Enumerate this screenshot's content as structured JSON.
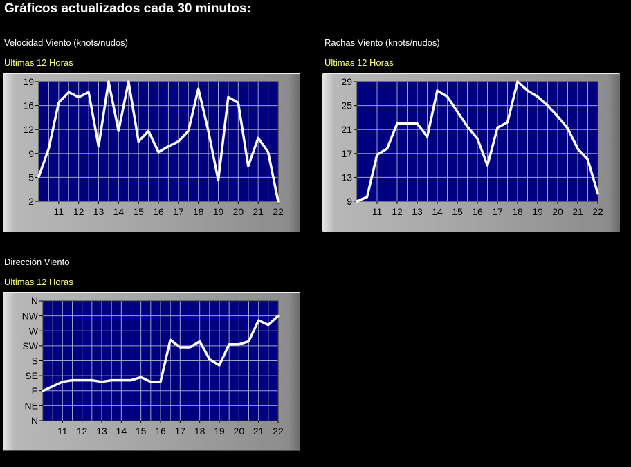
{
  "page": {
    "title": "Gráficos actualizados cada 30 minutos:"
  },
  "chart_data": [
    {
      "type": "line",
      "title": "Velocidad Viento (knots/nudos)",
      "subtitle": "Ultimas 12 Horas",
      "x_ticks": [
        "11",
        "12",
        "13",
        "14",
        "15",
        "16",
        "17",
        "18",
        "19",
        "20",
        "21",
        "22"
      ],
      "y_ticks": [
        "19",
        "16",
        "12",
        "9",
        "5",
        "2"
      ],
      "xlim": [
        10,
        22
      ],
      "ylim": [
        2,
        19
      ],
      "grid": true,
      "colors": {
        "plot_bg": "#000080",
        "line": "#ffffff",
        "grid": "#a0a0c8",
        "frame": "#a4a4a4"
      },
      "series": [
        {
          "x": [
            10,
            10.5,
            11,
            11.5,
            12,
            12.5,
            13,
            13.5,
            14,
            14.5,
            15,
            15.5,
            16,
            16.5,
            17,
            17.5,
            18,
            18.5,
            19,
            19.5,
            20,
            20.5,
            21,
            21.5,
            22
          ],
          "y": [
            5.5,
            9.5,
            16,
            17.5,
            16.8,
            17.5,
            9.8,
            19,
            12,
            19,
            10.5,
            12,
            9,
            9.8,
            10.5,
            12,
            18,
            12,
            5,
            16.8,
            16,
            7,
            11,
            9,
            2
          ]
        }
      ]
    },
    {
      "type": "line",
      "title": "Rachas Viento (knots/nudos)",
      "subtitle": "Ultimas 12 Horas",
      "x_ticks": [
        "11",
        "12",
        "13",
        "14",
        "15",
        "16",
        "17",
        "18",
        "19",
        "20",
        "21",
        "22"
      ],
      "y_ticks": [
        "29",
        "25",
        "21",
        "17",
        "13",
        "9"
      ],
      "xlim": [
        10,
        22
      ],
      "ylim": [
        9,
        29
      ],
      "grid": true,
      "colors": {
        "plot_bg": "#000080",
        "line": "#ffffff",
        "grid": "#a0a0c8",
        "frame": "#a4a4a4"
      },
      "series": [
        {
          "x": [
            10,
            10.5,
            11,
            11.5,
            12,
            12.5,
            13,
            13.5,
            14,
            14.5,
            15,
            15.5,
            16,
            16.5,
            17,
            17.5,
            18,
            18.5,
            19,
            19.5,
            20,
            20.5,
            21,
            21.5,
            22
          ],
          "y": [
            9,
            9.7,
            16.8,
            17.8,
            22,
            22,
            22,
            19.8,
            27.5,
            26.5,
            24,
            21.5,
            19.5,
            15,
            21.3,
            22.2,
            29,
            27.5,
            26.5,
            25,
            23.2,
            21.2,
            17.8,
            16,
            10.3
          ]
        }
      ]
    },
    {
      "type": "line",
      "title": "Dirección Viento",
      "subtitle": "Ultimas 12 Horas",
      "x_ticks": [
        "11",
        "12",
        "13",
        "14",
        "15",
        "16",
        "17",
        "18",
        "19",
        "20",
        "21",
        "22"
      ],
      "y_ticks": [
        "N",
        "NW",
        "W",
        "SW",
        "S",
        "SE",
        "E",
        "NE",
        "N"
      ],
      "xlim": [
        10,
        22
      ],
      "ylim": [
        0,
        8
      ],
      "grid": true,
      "colors": {
        "plot_bg": "#000080",
        "line": "#ffffff",
        "grid": "#a0a0c8",
        "frame": "#a4a4a4"
      },
      "series": [
        {
          "x": [
            10,
            10.5,
            11,
            11.5,
            12,
            12.5,
            13,
            13.5,
            14,
            14.5,
            15,
            15.5,
            16,
            16.5,
            17,
            17.5,
            18,
            18.5,
            19,
            19.5,
            20,
            20.5,
            21,
            21.5,
            22
          ],
          "y": [
            2,
            2.3,
            2.6,
            2.7,
            2.7,
            2.7,
            2.6,
            2.7,
            2.7,
            2.7,
            2.9,
            2.6,
            2.6,
            5.4,
            4.9,
            4.9,
            5.3,
            4.1,
            3.7,
            5.1,
            5.1,
            5.3,
            6.7,
            6.4,
            7
          ]
        }
      ]
    }
  ]
}
